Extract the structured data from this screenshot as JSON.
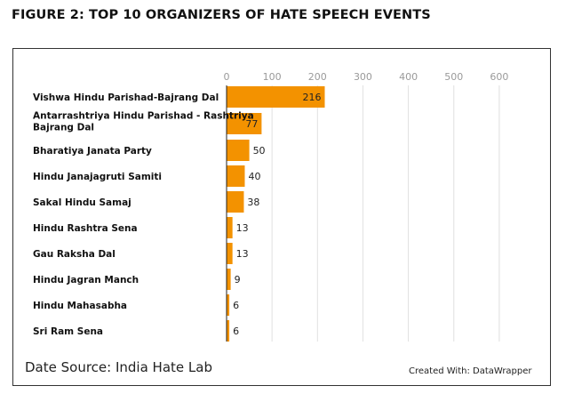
{
  "figure_title": "FIGURE 2: TOP 10 ORGANIZERS OF HATE SPEECH EVENTS",
  "footer": {
    "source": "Date Source: India Hate Lab",
    "credit": "Created With: DataWrapper"
  },
  "colors": {
    "bar": "#f39200",
    "grid": "#e0e0e0",
    "axis_text": "#9a9a9a",
    "label_text": "#111111"
  },
  "chart_data": {
    "type": "bar",
    "orientation": "horizontal",
    "title": "",
    "xlabel": "",
    "ylabel": "",
    "xlim": [
      0,
      600
    ],
    "ticks": [
      0,
      100,
      200,
      300,
      400,
      500,
      600
    ],
    "tick_labels": [
      "0",
      "100",
      "200",
      "300",
      "400",
      "500",
      "600"
    ],
    "grid": true,
    "categories": [
      "Vishwa Hindu Parishad-Bajrang Dal",
      "Antarrashtriya Hindu Parishad - Rashtriya Bajrang Dal",
      "Bharatiya Janata Party",
      "Hindu Janajagruti Samiti",
      "Sakal Hindu Samaj",
      "Hindu Rashtra Sena",
      "Gau Raksha Dal",
      "Hindu Jagran Manch",
      "Hindu Mahasabha",
      "Sri Ram Sena"
    ],
    "category_lines": [
      [
        "Vishwa Hindu Parishad-Bajrang Dal"
      ],
      [
        "Antarrashtriya Hindu Parishad - Rashtriya",
        "Bajrang Dal"
      ],
      [
        "Bharatiya Janata Party"
      ],
      [
        "Hindu Janajagruti Samiti"
      ],
      [
        "Sakal Hindu Samaj"
      ],
      [
        "Hindu Rashtra Sena"
      ],
      [
        "Gau Raksha Dal"
      ],
      [
        "Hindu Jagran Manch"
      ],
      [
        "Hindu Mahasabha"
      ],
      [
        "Sri Ram Sena"
      ]
    ],
    "values": [
      216,
      77,
      50,
      40,
      38,
      13,
      13,
      9,
      6,
      6
    ]
  }
}
